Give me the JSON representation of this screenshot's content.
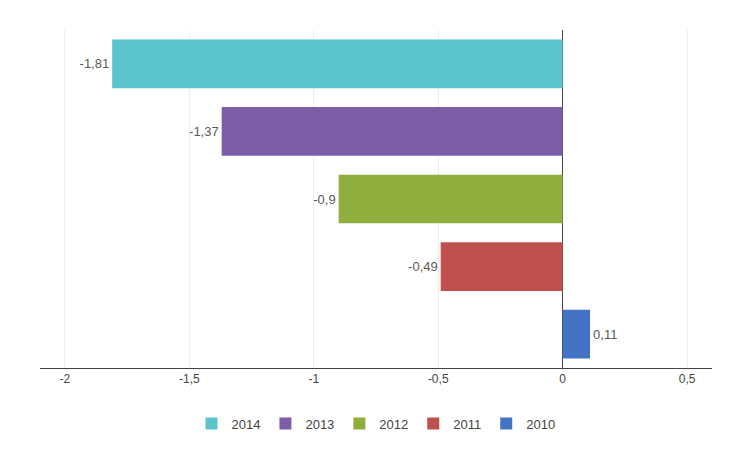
{
  "chart_data": {
    "type": "bar",
    "orientation": "horizontal",
    "categories": [
      "2014",
      "2013",
      "2012",
      "2011",
      "2010"
    ],
    "values": [
      -1.81,
      -1.37,
      -0.9,
      -0.49,
      0.11
    ],
    "value_labels": [
      "-1,81",
      "-1,37",
      "-0,9",
      "-0,49",
      "0,11"
    ],
    "colors": [
      "#5bc4cc",
      "#7b5ea7",
      "#8fae3e",
      "#c0504d",
      "#4472c4"
    ],
    "xlim": [
      -2.1,
      0.6
    ],
    "xticks": [
      -2,
      {
        "value": -1.5,
        "label": "-1,5"
      },
      -1,
      {
        "value": -0.5,
        "label": "-0,5"
      },
      0,
      {
        "value": 0.5,
        "label": "0,5"
      }
    ],
    "grid": true,
    "data_labels": true,
    "tick_labels": "x",
    "legend": "bottom"
  }
}
